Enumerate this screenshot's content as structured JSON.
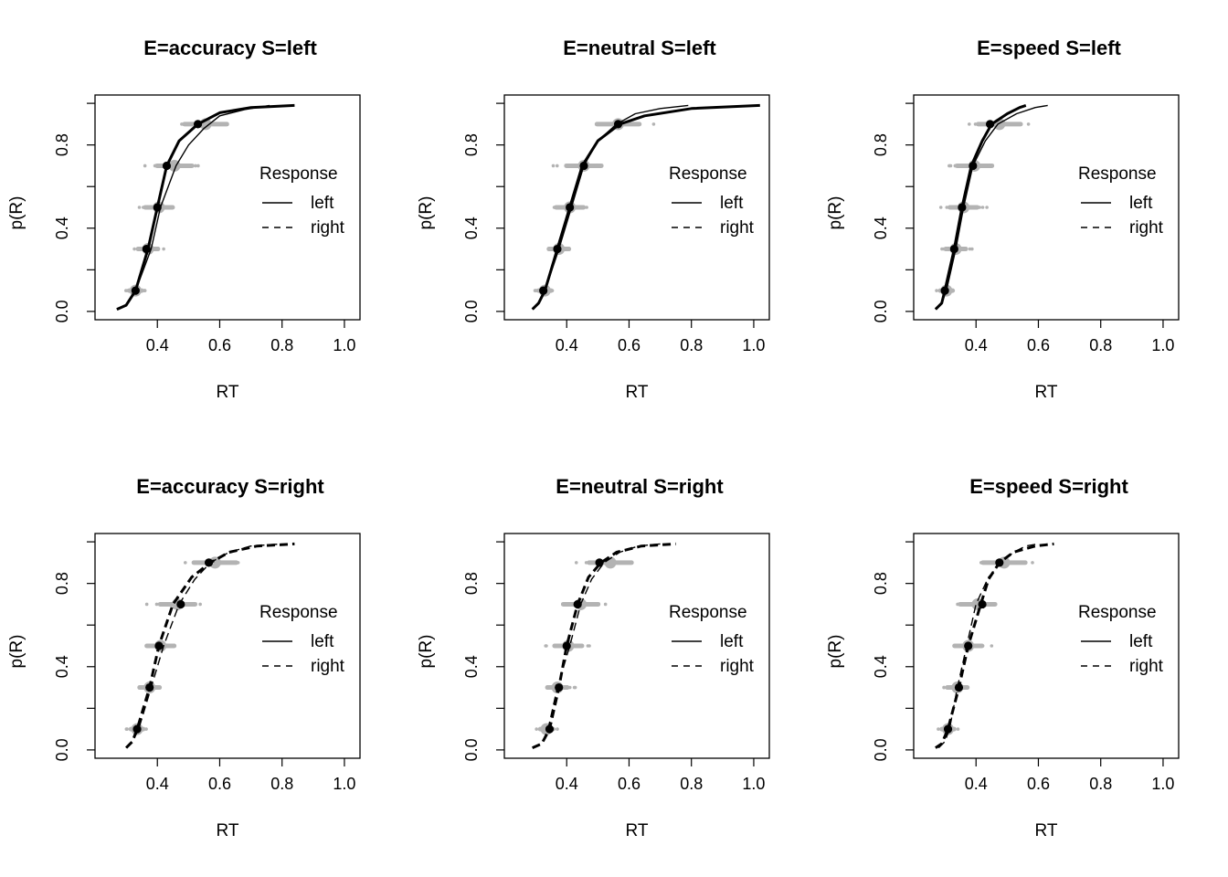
{
  "chart_data": [
    {
      "type": "line",
      "title": "E=accuracy S=left",
      "xlabel": "RT",
      "ylabel": "p(R)",
      "xlim": [
        0.2,
        1.05
      ],
      "ylim": [
        -0.04,
        1.04
      ],
      "xticks": [
        0.4,
        0.6,
        0.8,
        1.0
      ],
      "xtick_labels": [
        "0.4",
        "0.6",
        "0.8",
        "1.0"
      ],
      "yticks": [
        0.0,
        0.4,
        0.8
      ],
      "ytick_labels": [
        "0.0",
        "0.4",
        "0.8"
      ],
      "legend": {
        "title": "Response",
        "items": [
          {
            "label": "left",
            "style": "solid"
          },
          {
            "label": "right",
            "style": "dashed"
          }
        ],
        "position": "right"
      },
      "quantiles": [
        0.1,
        0.3,
        0.5,
        0.7,
        0.9
      ],
      "series": [
        {
          "name": "left",
          "style": "solid",
          "observed_rt": [
            0.33,
            0.365,
            0.4,
            0.43,
            0.53
          ],
          "predicted_rt": [
            0.33,
            0.37,
            0.405,
            0.455,
            0.555
          ],
          "model_curve": [
            [
              0.27,
              0.01
            ],
            [
              0.3,
              0.03
            ],
            [
              0.33,
              0.1
            ],
            [
              0.37,
              0.3
            ],
            [
              0.4,
              0.5
            ],
            [
              0.43,
              0.7
            ],
            [
              0.47,
              0.82
            ],
            [
              0.53,
              0.9
            ],
            [
              0.6,
              0.955
            ],
            [
              0.7,
              0.98
            ],
            [
              0.84,
              0.99
            ]
          ],
          "model_curve_2": [
            [
              0.27,
              0.01
            ],
            [
              0.3,
              0.03
            ],
            [
              0.33,
              0.1
            ],
            [
              0.38,
              0.3
            ],
            [
              0.41,
              0.5
            ],
            [
              0.46,
              0.7
            ],
            [
              0.5,
              0.8
            ],
            [
              0.55,
              0.88
            ],
            [
              0.6,
              0.94
            ],
            [
              0.68,
              0.97
            ],
            [
              0.76,
              0.99
            ]
          ]
        }
      ]
    },
    {
      "type": "line",
      "title": "E=neutral S=left",
      "xlabel": "RT",
      "ylabel": "p(R)",
      "xlim": [
        0.2,
        1.05
      ],
      "ylim": [
        -0.04,
        1.04
      ],
      "xticks": [
        0.4,
        0.6,
        0.8,
        1.0
      ],
      "xtick_labels": [
        "0.4",
        "0.6",
        "0.8",
        "1.0"
      ],
      "yticks": [
        0.0,
        0.4,
        0.8
      ],
      "ytick_labels": [
        "0.0",
        "0.4",
        "0.8"
      ],
      "legend": {
        "title": "Response",
        "items": [
          {
            "label": "left",
            "style": "solid"
          },
          {
            "label": "right",
            "style": "dashed"
          }
        ],
        "position": "right"
      },
      "quantiles": [
        0.1,
        0.3,
        0.5,
        0.7,
        0.9
      ],
      "series": [
        {
          "name": "left",
          "style": "solid",
          "observed_rt": [
            0.325,
            0.37,
            0.41,
            0.455,
            0.565
          ],
          "predicted_rt": [
            0.33,
            0.375,
            0.41,
            0.455,
            0.565
          ],
          "model_curve": [
            [
              0.29,
              0.01
            ],
            [
              0.31,
              0.04
            ],
            [
              0.33,
              0.1
            ],
            [
              0.37,
              0.3
            ],
            [
              0.41,
              0.5
            ],
            [
              0.45,
              0.7
            ],
            [
              0.5,
              0.82
            ],
            [
              0.57,
              0.9
            ],
            [
              0.65,
              0.94
            ],
            [
              0.8,
              0.975
            ],
            [
              1.02,
              0.99
            ]
          ],
          "model_curve_2": [
            [
              0.29,
              0.01
            ],
            [
              0.31,
              0.04
            ],
            [
              0.33,
              0.1
            ],
            [
              0.375,
              0.3
            ],
            [
              0.415,
              0.5
            ],
            [
              0.455,
              0.7
            ],
            [
              0.5,
              0.82
            ],
            [
              0.56,
              0.9
            ],
            [
              0.62,
              0.95
            ],
            [
              0.7,
              0.975
            ],
            [
              0.79,
              0.99
            ]
          ]
        }
      ]
    },
    {
      "type": "line",
      "title": "E=speed S=left",
      "xlabel": "RT",
      "ylabel": "p(R)",
      "xlim": [
        0.2,
        1.05
      ],
      "ylim": [
        -0.04,
        1.04
      ],
      "xticks": [
        0.4,
        0.6,
        0.8,
        1.0
      ],
      "xtick_labels": [
        "0.4",
        "0.6",
        "0.8",
        "1.0"
      ],
      "yticks": [
        0.0,
        0.4,
        0.8
      ],
      "ytick_labels": [
        "0.0",
        "0.4",
        "0.8"
      ],
      "legend": {
        "title": "Response",
        "items": [
          {
            "label": "left",
            "style": "solid"
          },
          {
            "label": "right",
            "style": "dashed"
          }
        ],
        "position": "right"
      },
      "quantiles": [
        0.1,
        0.3,
        0.5,
        0.7,
        0.9
      ],
      "series": [
        {
          "name": "left",
          "style": "solid",
          "observed_rt": [
            0.3,
            0.33,
            0.355,
            0.39,
            0.445
          ],
          "predicted_rt": [
            0.305,
            0.335,
            0.36,
            0.395,
            0.475
          ],
          "model_curve": [
            [
              0.27,
              0.01
            ],
            [
              0.29,
              0.04
            ],
            [
              0.3,
              0.1
            ],
            [
              0.33,
              0.3
            ],
            [
              0.355,
              0.5
            ],
            [
              0.385,
              0.7
            ],
            [
              0.42,
              0.82
            ],
            [
              0.45,
              0.9
            ],
            [
              0.5,
              0.95
            ],
            [
              0.54,
              0.98
            ],
            [
              0.56,
              0.99
            ]
          ],
          "model_curve_2": [
            [
              0.27,
              0.01
            ],
            [
              0.29,
              0.04
            ],
            [
              0.305,
              0.1
            ],
            [
              0.335,
              0.3
            ],
            [
              0.36,
              0.5
            ],
            [
              0.39,
              0.7
            ],
            [
              0.43,
              0.82
            ],
            [
              0.47,
              0.9
            ],
            [
              0.53,
              0.95
            ],
            [
              0.59,
              0.98
            ],
            [
              0.63,
              0.99
            ]
          ]
        }
      ]
    },
    {
      "type": "line",
      "title": "E=accuracy S=right",
      "xlabel": "RT",
      "ylabel": "p(R)",
      "xlim": [
        0.2,
        1.05
      ],
      "ylim": [
        -0.04,
        1.04
      ],
      "xticks": [
        0.4,
        0.6,
        0.8,
        1.0
      ],
      "xtick_labels": [
        "0.4",
        "0.6",
        "0.8",
        "1.0"
      ],
      "yticks": [
        0.0,
        0.4,
        0.8
      ],
      "ytick_labels": [
        "0.0",
        "0.4",
        "0.8"
      ],
      "legend": {
        "title": "Response",
        "items": [
          {
            "label": "left",
            "style": "solid"
          },
          {
            "label": "right",
            "style": "dashed"
          }
        ],
        "position": "right"
      },
      "quantiles": [
        0.1,
        0.3,
        0.5,
        0.7,
        0.9
      ],
      "series": [
        {
          "name": "right",
          "style": "dashed",
          "observed_rt": [
            0.335,
            0.375,
            0.405,
            0.475,
            0.565
          ],
          "predicted_rt": [
            0.335,
            0.375,
            0.41,
            0.465,
            0.585
          ],
          "model_curve": [
            [
              0.3,
              0.01
            ],
            [
              0.32,
              0.04
            ],
            [
              0.335,
              0.1
            ],
            [
              0.375,
              0.3
            ],
            [
              0.405,
              0.5
            ],
            [
              0.45,
              0.7
            ],
            [
              0.51,
              0.83
            ],
            [
              0.57,
              0.9
            ],
            [
              0.63,
              0.95
            ],
            [
              0.72,
              0.98
            ],
            [
              0.84,
              0.99
            ]
          ],
          "model_curve_2": [
            [
              0.3,
              0.01
            ],
            [
              0.32,
              0.04
            ],
            [
              0.34,
              0.1
            ],
            [
              0.38,
              0.3
            ],
            [
              0.42,
              0.5
            ],
            [
              0.47,
              0.7
            ],
            [
              0.52,
              0.82
            ],
            [
              0.57,
              0.9
            ],
            [
              0.63,
              0.95
            ],
            [
              0.7,
              0.98
            ],
            [
              0.8,
              0.99
            ]
          ]
        }
      ]
    },
    {
      "type": "line",
      "title": "E=neutral S=right",
      "xlabel": "RT",
      "ylabel": "p(R)",
      "xlim": [
        0.2,
        1.05
      ],
      "ylim": [
        -0.04,
        1.04
      ],
      "xticks": [
        0.4,
        0.6,
        0.8,
        1.0
      ],
      "xtick_labels": [
        "0.4",
        "0.6",
        "0.8",
        "1.0"
      ],
      "yticks": [
        0.0,
        0.4,
        0.8
      ],
      "ytick_labels": [
        "0.0",
        "0.4",
        "0.8"
      ],
      "legend": {
        "title": "Response",
        "items": [
          {
            "label": "left",
            "style": "solid"
          },
          {
            "label": "right",
            "style": "dashed"
          }
        ],
        "position": "right"
      },
      "quantiles": [
        0.1,
        0.3,
        0.5,
        0.7,
        0.9
      ],
      "series": [
        {
          "name": "right",
          "style": "dashed",
          "observed_rt": [
            0.345,
            0.375,
            0.4,
            0.435,
            0.505
          ],
          "predicted_rt": [
            0.335,
            0.37,
            0.405,
            0.445,
            0.54
          ],
          "model_curve": [
            [
              0.29,
              0.01
            ],
            [
              0.32,
              0.03
            ],
            [
              0.345,
              0.1
            ],
            [
              0.375,
              0.3
            ],
            [
              0.4,
              0.5
            ],
            [
              0.435,
              0.7
            ],
            [
              0.47,
              0.83
            ],
            [
              0.51,
              0.9
            ],
            [
              0.56,
              0.95
            ],
            [
              0.64,
              0.98
            ],
            [
              0.75,
              0.99
            ]
          ],
          "model_curve_2": [
            [
              0.29,
              0.01
            ],
            [
              0.32,
              0.03
            ],
            [
              0.34,
              0.1
            ],
            [
              0.37,
              0.3
            ],
            [
              0.41,
              0.5
            ],
            [
              0.445,
              0.7
            ],
            [
              0.48,
              0.82
            ],
            [
              0.52,
              0.9
            ],
            [
              0.57,
              0.95
            ],
            [
              0.63,
              0.98
            ],
            [
              0.7,
              0.99
            ]
          ]
        }
      ]
    },
    {
      "type": "line",
      "title": "E=speed S=right",
      "xlabel": "RT",
      "ylabel": "p(R)",
      "xlim": [
        0.2,
        1.05
      ],
      "ylim": [
        -0.04,
        1.04
      ],
      "xticks": [
        0.4,
        0.6,
        0.8,
        1.0
      ],
      "xtick_labels": [
        "0.4",
        "0.6",
        "0.8",
        "1.0"
      ],
      "yticks": [
        0.0,
        0.4,
        0.8
      ],
      "ytick_labels": [
        "0.0",
        "0.4",
        "0.8"
      ],
      "legend": {
        "title": "Response",
        "items": [
          {
            "label": "left",
            "style": "solid"
          },
          {
            "label": "right",
            "style": "dashed"
          }
        ],
        "position": "right"
      },
      "quantiles": [
        0.1,
        0.3,
        0.5,
        0.7,
        0.9
      ],
      "series": [
        {
          "name": "right",
          "style": "dashed",
          "observed_rt": [
            0.31,
            0.345,
            0.375,
            0.42,
            0.475
          ],
          "predicted_rt": [
            0.31,
            0.34,
            0.375,
            0.405,
            0.49
          ],
          "model_curve": [
            [
              0.27,
              0.01
            ],
            [
              0.29,
              0.03
            ],
            [
              0.31,
              0.1
            ],
            [
              0.345,
              0.3
            ],
            [
              0.375,
              0.5
            ],
            [
              0.415,
              0.7
            ],
            [
              0.44,
              0.82
            ],
            [
              0.475,
              0.9
            ],
            [
              0.52,
              0.95
            ],
            [
              0.59,
              0.98
            ],
            [
              0.65,
              0.99
            ]
          ],
          "model_curve_2": [
            [
              0.28,
              0.01
            ],
            [
              0.3,
              0.04
            ],
            [
              0.315,
              0.1
            ],
            [
              0.34,
              0.3
            ],
            [
              0.37,
              0.5
            ],
            [
              0.4,
              0.7
            ],
            [
              0.44,
              0.83
            ],
            [
              0.48,
              0.9
            ],
            [
              0.52,
              0.95
            ],
            [
              0.56,
              0.98
            ],
            [
              0.6,
              0.99
            ]
          ]
        }
      ]
    }
  ]
}
